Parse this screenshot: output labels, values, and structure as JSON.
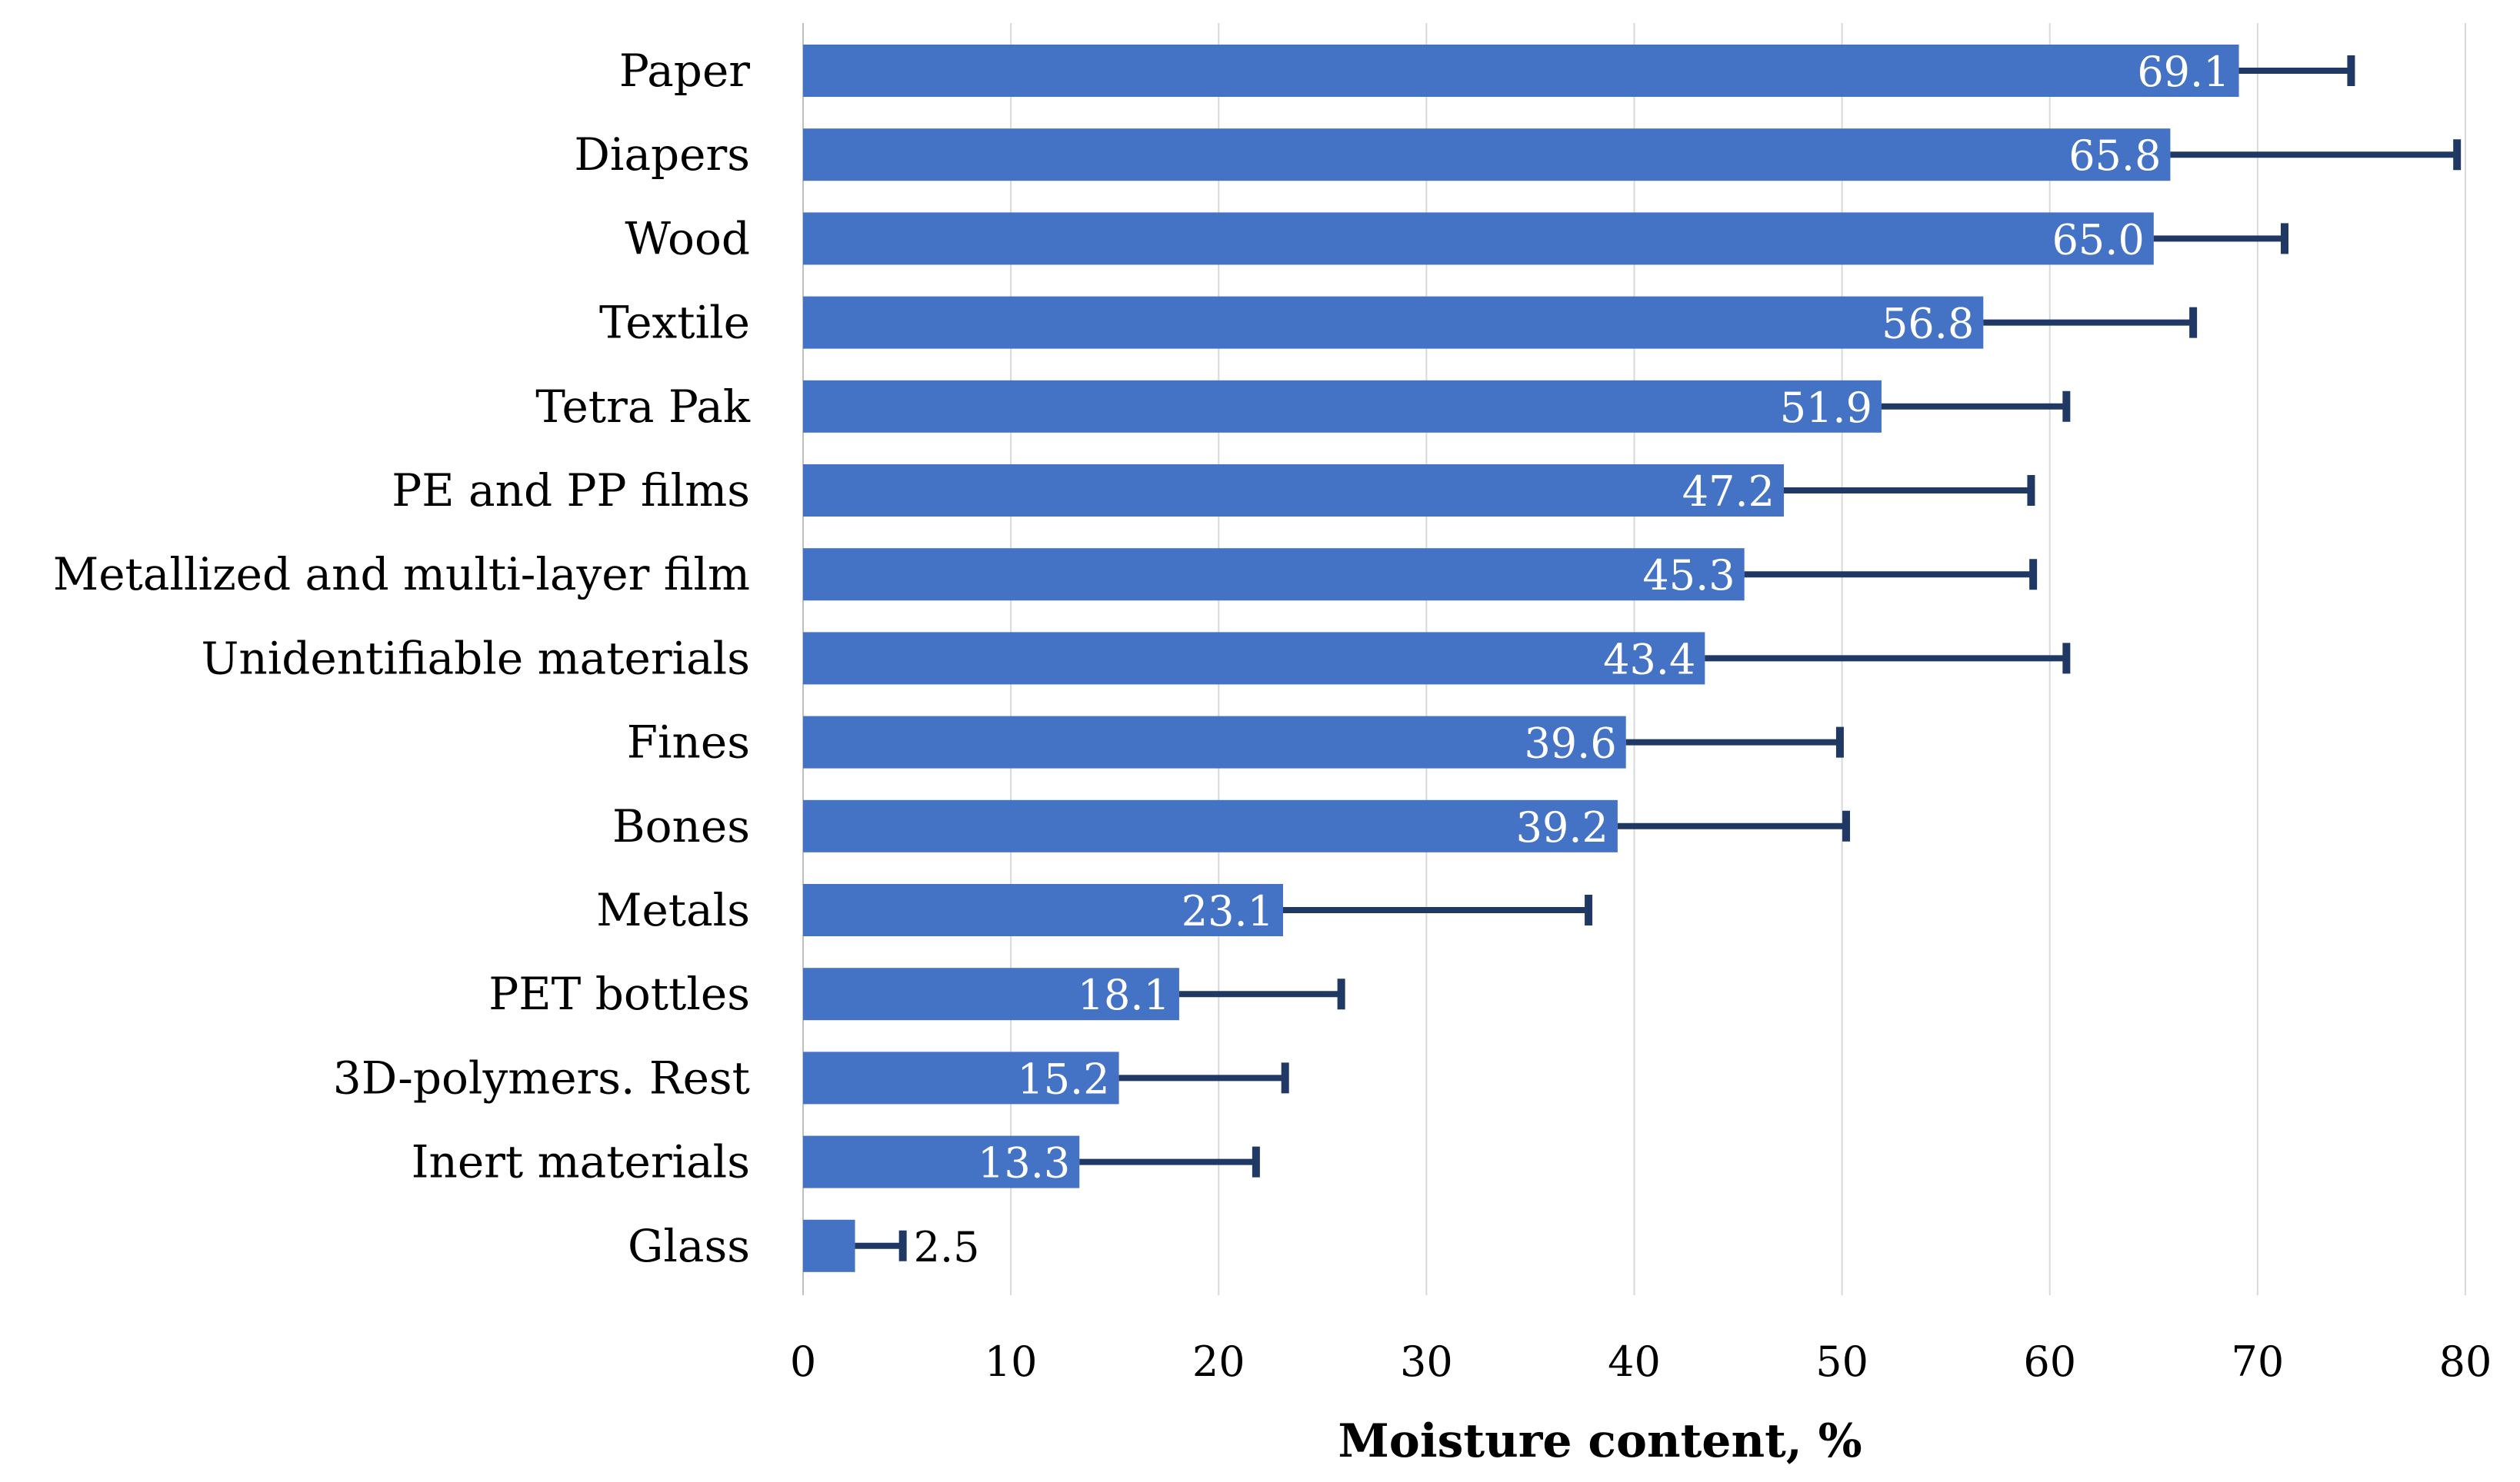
{
  "chart_data": {
    "type": "bar",
    "orientation": "horizontal",
    "title": "",
    "xlabel": "Moisture content, %",
    "ylabel": "",
    "xlim": [
      0,
      80
    ],
    "xticks": [
      0,
      10,
      20,
      30,
      40,
      50,
      60,
      70,
      80
    ],
    "grid": true,
    "legend": "none",
    "categories": [
      "Paper",
      "Diapers",
      "Wood",
      "Textile",
      "Tetra Pak",
      "PE and PP films",
      "Metallized and multi-layer film",
      "Unidentifiable materials",
      "Fines",
      "Bones",
      "Metals",
      "PET bottles",
      "3D-polymers. Rest",
      "Inert materials",
      "Glass"
    ],
    "values": [
      69.1,
      65.8,
      65.0,
      56.8,
      51.9,
      47.2,
      45.3,
      43.4,
      39.6,
      39.2,
      23.1,
      18.1,
      15.2,
      13.3,
      2.5
    ],
    "value_labels": [
      "69.1",
      "65.8",
      "65.0",
      "56.8",
      "51.9",
      "47.2",
      "45.3",
      "43.4",
      "39.6",
      "39.2",
      "23.1",
      "18.1",
      "15.2",
      "13.3",
      "2.5"
    ],
    "error_plus": [
      5.4,
      13.8,
      6.3,
      10.1,
      8.9,
      11.9,
      13.9,
      17.4,
      10.3,
      11.0,
      14.7,
      7.8,
      8.0,
      8.5,
      2.3
    ],
    "colors": {
      "bar": "#4472C4",
      "error_bar": "#203864",
      "grid": "#D9D9D9",
      "label_inside": "#FFFFFF",
      "label_outside": "#000000"
    }
  }
}
